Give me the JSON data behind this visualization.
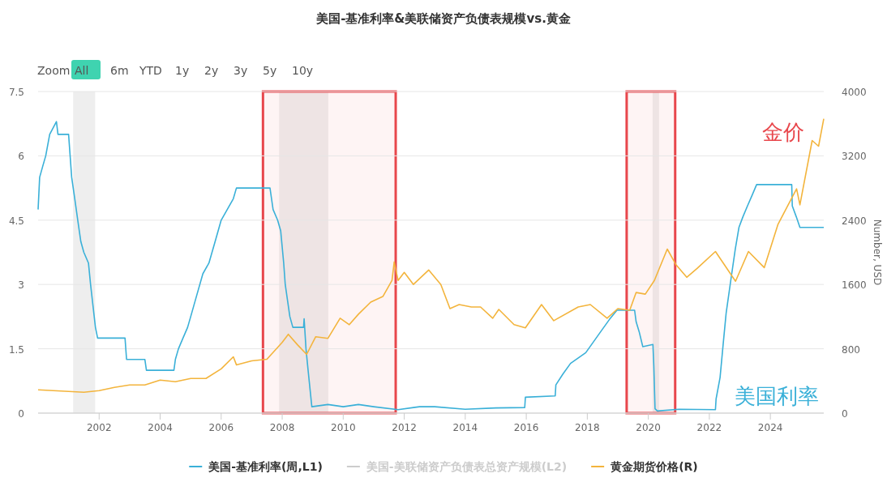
{
  "chart_data": {
    "type": "line",
    "title": "美国-基准利率&美联储资产负债表规模vs.黄金",
    "y2label": "Number, USD",
    "annotations": [
      "Zoom",
      "All",
      "6m",
      "YTD",
      "1y",
      "2y",
      "3y",
      "5y",
      "10y",
      "金价",
      "美国利率"
    ],
    "series": [
      {
        "name": "美国-基准利率(周,L1)",
        "color": "#3ab0d8",
        "axis": "y",
        "x": [
          2000.0,
          2000.05,
          2000.15,
          2000.25,
          2000.38,
          2000.6,
          2000.65,
          2001.0,
          2001.05,
          2001.1,
          2001.2,
          2001.3,
          2001.4,
          2001.5,
          2001.65,
          2001.72,
          2001.8,
          2001.88,
          2001.95,
          2002.85,
          2002.9,
          2003.5,
          2003.55,
          2004.45,
          2004.5,
          2004.6,
          2004.75,
          2004.9,
          2005.0,
          2005.2,
          2005.4,
          2005.6,
          2005.8,
          2006.0,
          2006.2,
          2006.4,
          2006.5,
          2007.6,
          2007.7,
          2007.85,
          2007.95,
          2008.05,
          2008.1,
          2008.25,
          2008.35,
          2008.7,
          2008.72,
          2008.78,
          2008.85,
          2008.97,
          2009.5,
          2010.0,
          2010.5,
          2011.0,
          2011.8,
          2012.5,
          2013.0,
          2014.0,
          2015.0,
          2015.95,
          2015.97,
          2016.95,
          2016.97,
          2017.2,
          2017.45,
          2017.95,
          2018.22,
          2018.45,
          2018.72,
          2018.97,
          2019.55,
          2019.6,
          2019.7,
          2019.82,
          2020.15,
          2020.18,
          2020.22,
          2020.3,
          2021.0,
          2022.2,
          2022.22,
          2022.35,
          2022.45,
          2022.55,
          2022.7,
          2022.85,
          2022.97,
          2023.1,
          2023.25,
          2023.4,
          2023.55,
          2024.7,
          2024.72,
          2024.85,
          2024.97,
          2025.75
        ],
        "values": [
          4.75,
          5.5,
          5.75,
          6.0,
          6.5,
          6.8,
          6.5,
          6.5,
          6.0,
          5.5,
          5.0,
          4.5,
          4.0,
          3.75,
          3.5,
          3.0,
          2.5,
          2.0,
          1.75,
          1.75,
          1.25,
          1.25,
          1.0,
          1.0,
          1.25,
          1.5,
          1.75,
          2.0,
          2.25,
          2.75,
          3.25,
          3.5,
          4.0,
          4.5,
          4.75,
          5.0,
          5.25,
          5.25,
          4.75,
          4.5,
          4.25,
          3.5,
          3.0,
          2.25,
          2.0,
          2.0,
          2.2,
          1.5,
          1.0,
          0.15,
          0.2,
          0.15,
          0.2,
          0.15,
          0.08,
          0.15,
          0.15,
          0.09,
          0.12,
          0.13,
          0.37,
          0.4,
          0.66,
          0.91,
          1.16,
          1.41,
          1.68,
          1.91,
          2.18,
          2.4,
          2.4,
          2.13,
          1.9,
          1.55,
          1.6,
          1.1,
          0.1,
          0.05,
          0.09,
          0.08,
          0.33,
          0.83,
          1.58,
          2.33,
          3.08,
          3.83,
          4.33,
          4.58,
          4.83,
          5.08,
          5.33,
          5.33,
          4.83,
          4.58,
          4.33,
          4.33
        ]
      },
      {
        "name": "美国-美联储资产负债表总资产规模(L2)",
        "color": "#cccccc"
      },
      {
        "name": "黄金期货价格(R)",
        "color": "#f3b43c",
        "axis": "y2",
        "x": [
          2000.0,
          2000.5,
          2001.0,
          2001.5,
          2002.0,
          2002.5,
          2003.0,
          2003.5,
          2004.0,
          2004.5,
          2005.0,
          2005.5,
          2006.0,
          2006.4,
          2006.5,
          2007.0,
          2007.5,
          2008.0,
          2008.2,
          2008.5,
          2008.8,
          2009.1,
          2009.5,
          2009.9,
          2010.2,
          2010.5,
          2010.9,
          2011.3,
          2011.6,
          2011.67,
          2011.8,
          2012.0,
          2012.3,
          2012.8,
          2013.2,
          2013.5,
          2013.8,
          2014.2,
          2014.5,
          2014.9,
          2015.1,
          2015.6,
          2015.97,
          2016.5,
          2016.9,
          2017.7,
          2018.1,
          2018.65,
          2019.0,
          2019.39,
          2019.6,
          2019.9,
          2020.2,
          2020.62,
          2020.9,
          2021.26,
          2021.6,
          2022.2,
          2022.86,
          2023.28,
          2023.8,
          2024.25,
          2024.86,
          2024.97,
          2025.37,
          2025.58,
          2025.75
        ],
        "values": [
          290,
          280,
          270,
          260,
          280,
          320,
          350,
          350,
          410,
          390,
          430,
          430,
          550,
          700,
          600,
          650,
          670,
          880,
          980,
          850,
          730,
          950,
          930,
          1180,
          1100,
          1230,
          1380,
          1450,
          1650,
          1880,
          1650,
          1750,
          1600,
          1780,
          1600,
          1300,
          1350,
          1320,
          1320,
          1180,
          1290,
          1100,
          1060,
          1350,
          1150,
          1320,
          1350,
          1180,
          1300,
          1280,
          1500,
          1480,
          1650,
          2040,
          1850,
          1690,
          1800,
          2010,
          1640,
          2010,
          1810,
          2350,
          2790,
          2590,
          3390,
          3320,
          3660
        ]
      }
    ],
    "xlim": [
      2000,
      2025.75
    ],
    "xticks": [
      2002,
      2004,
      2006,
      2008,
      2010,
      2012,
      2014,
      2016,
      2018,
      2020,
      2022,
      2024
    ],
    "ylim": [
      0,
      7.5
    ],
    "yticks": [
      0,
      1.5,
      3,
      4.5,
      6,
      7.5
    ],
    "y2lim": [
      0,
      4000
    ],
    "y2ticks": [
      0,
      800,
      1600,
      2400,
      3200,
      4000
    ],
    "bands": [
      {
        "axis": "x",
        "from": 2001.15,
        "to": 2001.87
      },
      {
        "axis": "x",
        "from": 2007.9,
        "to": 2009.51
      },
      {
        "axis": "x",
        "from": 2020.14,
        "to": 2020.35
      },
      {
        "axis": "x",
        "from": 2007.37,
        "to": 2011.72,
        "color": "#e8474c"
      },
      {
        "axis": "x",
        "from": 2019.29,
        "to": 2020.88,
        "color": "#e8474c"
      }
    ],
    "grid": "y",
    "legend": "bottom"
  }
}
